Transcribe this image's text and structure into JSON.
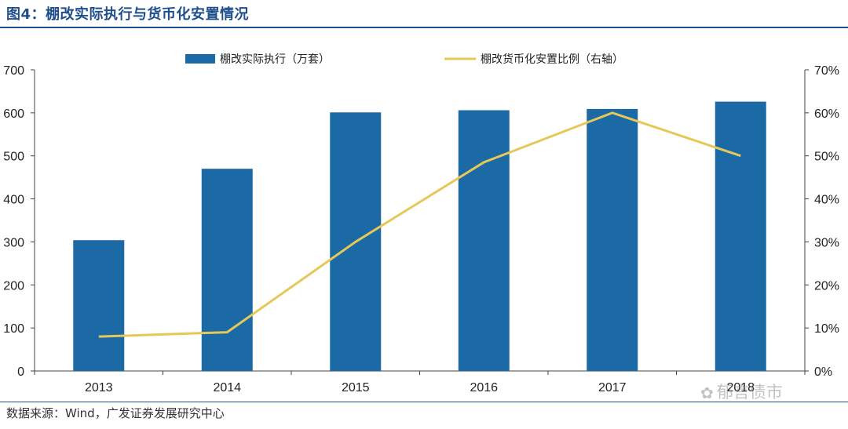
{
  "header": {
    "title": "图4：棚改实际执行与货币化安置情况"
  },
  "footer": {
    "source": "数据来源：Wind，广发证券发展研究中心"
  },
  "watermark": {
    "text": "郁言债市"
  },
  "colors": {
    "bar": "#1b6aa5",
    "line": "#e6c85a",
    "title": "#1f4e8c",
    "axis": "#444444"
  },
  "chart_data": {
    "type": "bar",
    "categories": [
      "2013",
      "2014",
      "2015",
      "2016",
      "2017",
      "2018"
    ],
    "series": [
      {
        "name": "棚改实际执行（万套）",
        "type": "bar",
        "axis": "left",
        "values": [
          304,
          470,
          601,
          606,
          609,
          626
        ]
      },
      {
        "name": "棚改货币化安置比例（右轴）",
        "type": "line",
        "axis": "right",
        "values": [
          8,
          9,
          30,
          48.5,
          60,
          50
        ]
      }
    ],
    "ylim_left": [
      0,
      700
    ],
    "yticks_left": [
      "0",
      "100",
      "200",
      "300",
      "400",
      "500",
      "600",
      "700"
    ],
    "ylim_right": [
      0,
      70
    ],
    "yticks_right": [
      "0%",
      "10%",
      "20%",
      "30%",
      "40%",
      "50%",
      "60%",
      "70%"
    ],
    "legend_position": "top-center",
    "grid": false
  }
}
